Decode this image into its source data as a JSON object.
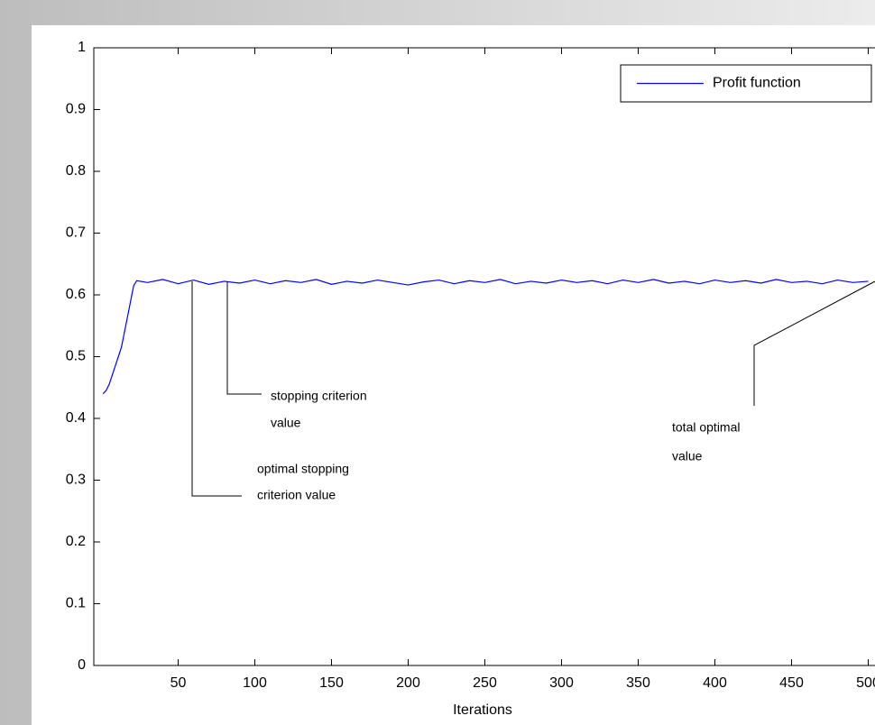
{
  "chart_data": {
    "type": "line",
    "xlabel": "Iterations",
    "x": [
      1,
      3,
      5,
      7,
      9,
      11,
      13,
      15,
      17,
      19,
      21,
      23,
      30,
      40,
      50,
      60,
      70,
      80,
      90,
      100,
      110,
      120,
      130,
      140,
      150,
      160,
      170,
      180,
      190,
      200,
      210,
      220,
      230,
      240,
      250,
      260,
      270,
      280,
      290,
      300,
      310,
      320,
      330,
      340,
      350,
      360,
      370,
      380,
      390,
      400,
      410,
      420,
      430,
      440,
      450,
      460,
      470,
      480,
      490,
      500
    ],
    "series": [
      {
        "name": "Profit function",
        "color": "#0000ff",
        "values": [
          0.44,
          0.445,
          0.455,
          0.47,
          0.485,
          0.5,
          0.515,
          0.54,
          0.565,
          0.59,
          0.615,
          0.623,
          0.62,
          0.625,
          0.618,
          0.624,
          0.617,
          0.622,
          0.619,
          0.624,
          0.618,
          0.623,
          0.62,
          0.625,
          0.617,
          0.622,
          0.619,
          0.624,
          0.62,
          0.616,
          0.621,
          0.624,
          0.618,
          0.623,
          0.62,
          0.625,
          0.618,
          0.622,
          0.619,
          0.624,
          0.62,
          0.623,
          0.618,
          0.624,
          0.62,
          0.625,
          0.619,
          0.622,
          0.618,
          0.624,
          0.62,
          0.623,
          0.619,
          0.625,
          0.62,
          0.622,
          0.618,
          0.624,
          0.62,
          0.622
        ]
      }
    ],
    "xlim": [
      -5,
      540
    ],
    "xticks": [
      50,
      100,
      150,
      200,
      250,
      300,
      350,
      400,
      450,
      500
    ],
    "ylim": [
      0,
      1
    ],
    "yticks": [
      0,
      0.1,
      0.2,
      0.3,
      0.4,
      0.5,
      0.6,
      0.7,
      0.8,
      0.9,
      1
    ],
    "legend": "top-right",
    "annotations": [
      {
        "lines": [
          "stopping criterion",
          "value"
        ]
      },
      {
        "lines": [
          "optimal stopping",
          "criterion value"
        ]
      },
      {
        "lines": [
          "total optimal",
          "value"
        ]
      }
    ]
  }
}
